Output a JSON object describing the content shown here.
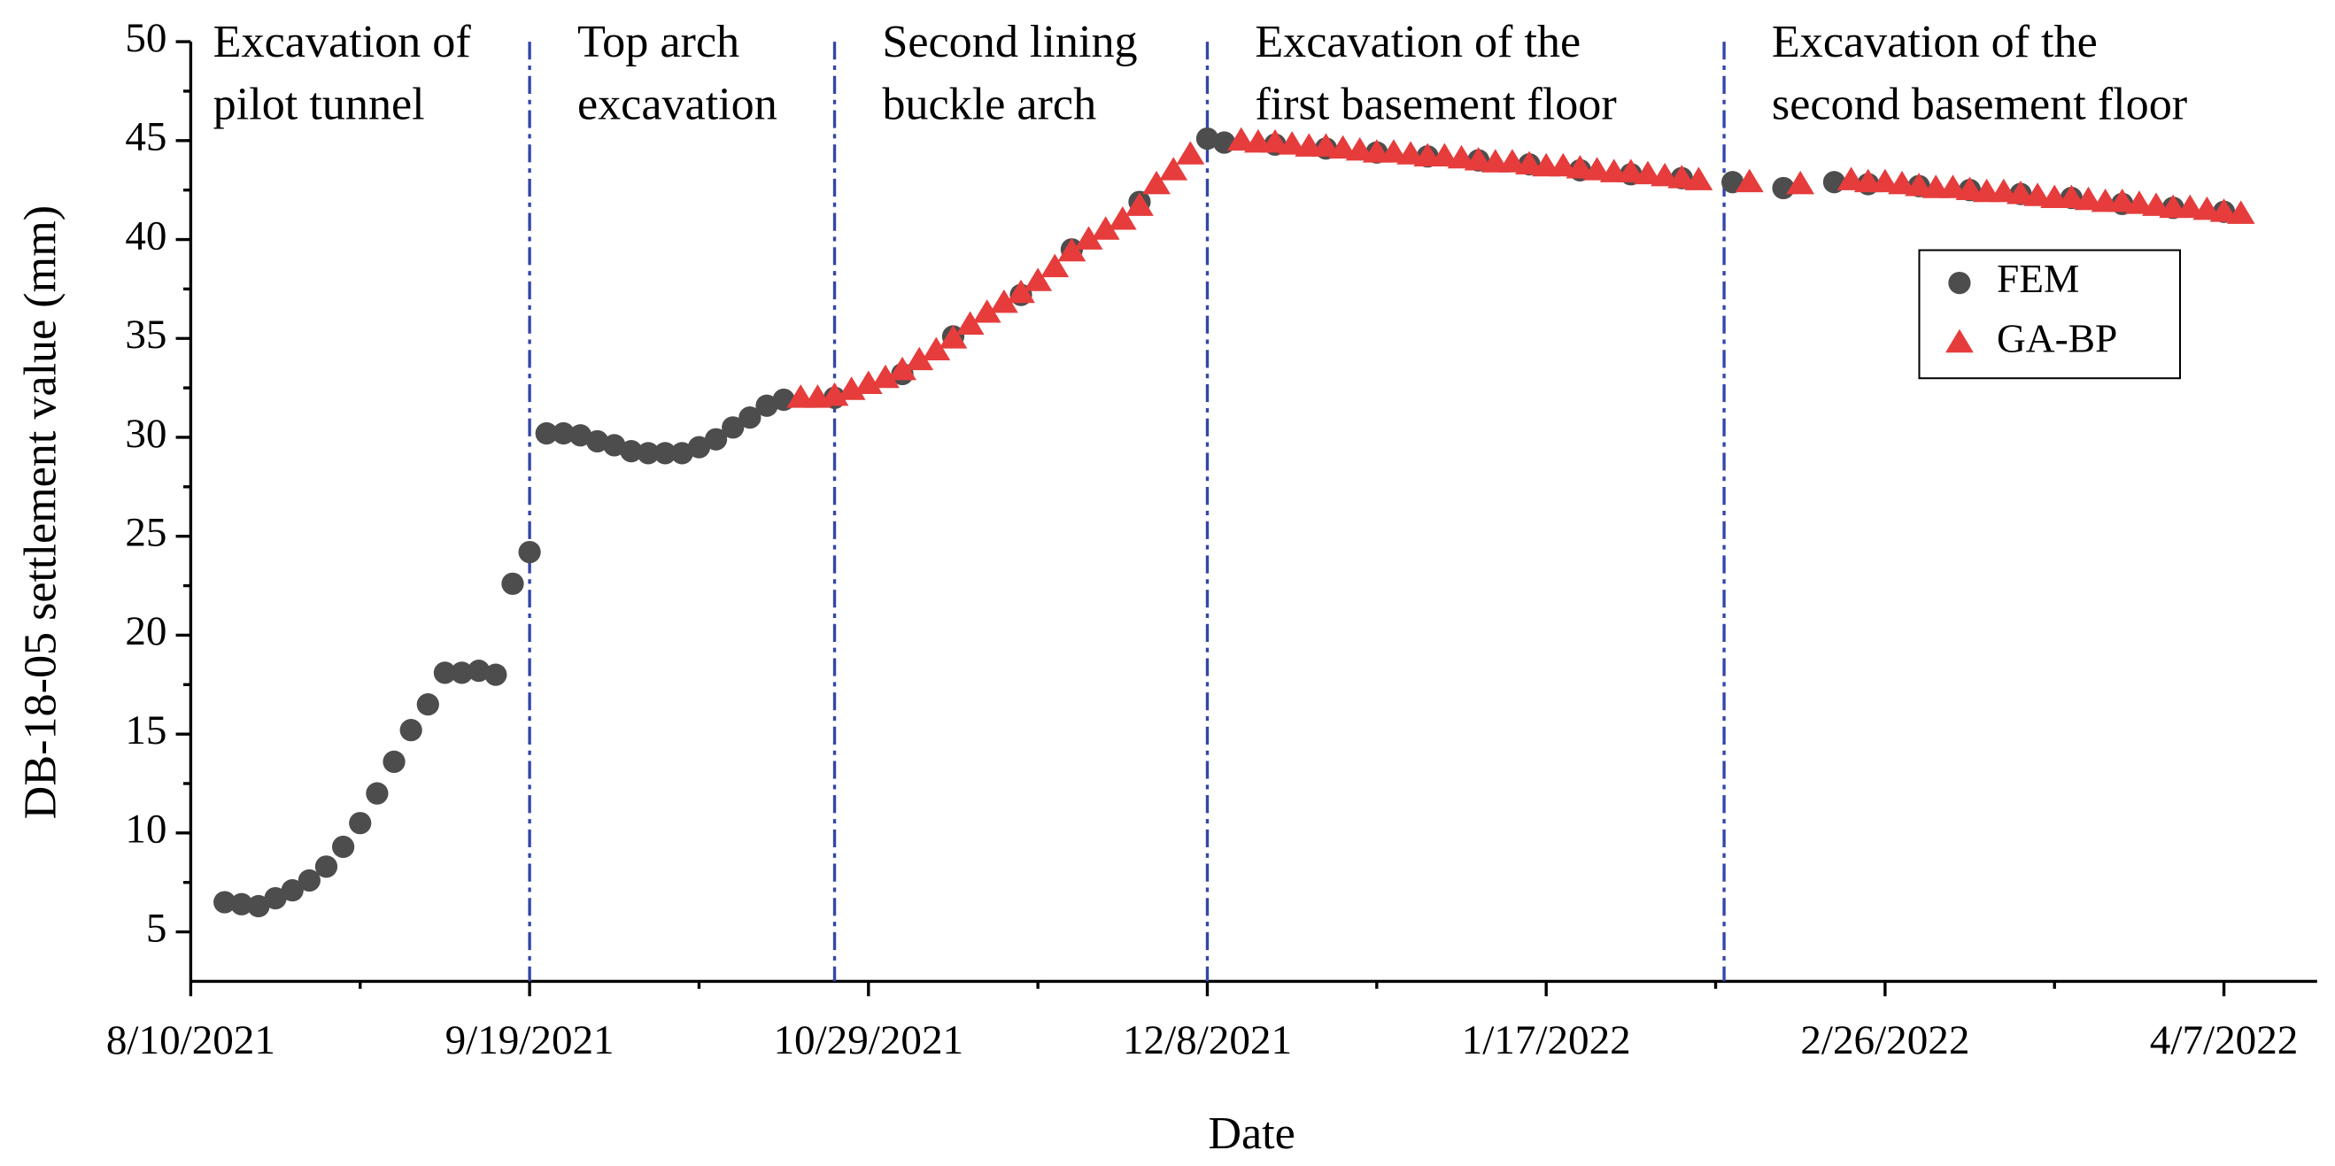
{
  "chart_data": {
    "type": "scatter",
    "x_label": "Date",
    "y_label": "DB-18-05 settlement value (mm)",
    "xlim": [
      "2021-08-10",
      "2022-04-18"
    ],
    "xticks": [
      {
        "value": "2021-08-10",
        "label": "8/10/2021"
      },
      {
        "value": "2021-09-19",
        "label": "9/19/2021"
      },
      {
        "value": "2021-10-29",
        "label": "10/29/2021"
      },
      {
        "value": "2021-12-08",
        "label": "12/8/2021"
      },
      {
        "value": "2022-01-17",
        "label": "1/17/2022"
      },
      {
        "value": "2022-02-26",
        "label": "2/26/2022"
      },
      {
        "value": "2022-04-07",
        "label": "4/7/2022"
      }
    ],
    "ylim": [
      2.5,
      50
    ],
    "yticks": [
      5,
      10,
      15,
      20,
      25,
      30,
      35,
      40,
      45,
      50
    ],
    "legend": "upper right",
    "phase_boundaries": [
      "2021-09-19",
      "2021-10-25",
      "2021-12-08",
      "2022-02-07"
    ],
    "phases": [
      {
        "lines": [
          "Excavation of",
          "pilot tunnel"
        ]
      },
      {
        "lines": [
          "Top arch",
          "excavation"
        ]
      },
      {
        "lines": [
          "Second lining",
          "buckle arch"
        ]
      },
      {
        "lines": [
          "Excavation of the",
          "first basement floor"
        ]
      },
      {
        "lines": [
          "Excavation of the",
          "second basement floor"
        ]
      }
    ],
    "series": [
      {
        "name": "FEM",
        "color": "#4d4d4d",
        "marker": "circle",
        "x": [
          "2021-08-14",
          "2021-08-16",
          "2021-08-18",
          "2021-08-20",
          "2021-08-22",
          "2021-08-24",
          "2021-08-26",
          "2021-08-28",
          "2021-08-30",
          "2021-09-01",
          "2021-09-03",
          "2021-09-05",
          "2021-09-07",
          "2021-09-09",
          "2021-09-11",
          "2021-09-13",
          "2021-09-15",
          "2021-09-17",
          "2021-09-19",
          "2021-09-21",
          "2021-09-23",
          "2021-09-25",
          "2021-09-27",
          "2021-09-29",
          "2021-10-01",
          "2021-10-03",
          "2021-10-05",
          "2021-10-07",
          "2021-10-09",
          "2021-10-11",
          "2021-10-13",
          "2021-10-15",
          "2021-10-17",
          "2021-10-19",
          "2021-10-25",
          "2021-11-02",
          "2021-11-08",
          "2021-11-16",
          "2021-11-22",
          "2021-11-30",
          "2021-12-08",
          "2021-12-10",
          "2021-12-16",
          "2021-12-22",
          "2021-12-28",
          "2022-01-03",
          "2022-01-09",
          "2022-01-15",
          "2022-01-21",
          "2022-01-27",
          "2022-02-02",
          "2022-02-08",
          "2022-02-14",
          "2022-02-20",
          "2022-02-24",
          "2022-03-02",
          "2022-03-08",
          "2022-03-14",
          "2022-03-20",
          "2022-03-26",
          "2022-04-01",
          "2022-04-07"
        ],
        "values": [
          6.5,
          6.4,
          6.3,
          6.7,
          7.1,
          7.6,
          8.3,
          9.3,
          10.5,
          12.0,
          13.6,
          15.2,
          16.5,
          18.1,
          18.1,
          18.2,
          18.0,
          22.6,
          24.2,
          30.2,
          30.2,
          30.1,
          29.8,
          29.6,
          29.3,
          29.2,
          29.2,
          29.2,
          29.5,
          29.9,
          30.5,
          31.0,
          31.6,
          31.9,
          32.0,
          33.2,
          35.1,
          37.2,
          39.5,
          41.9,
          45.1,
          44.9,
          44.8,
          44.6,
          44.4,
          44.2,
          44.0,
          43.8,
          43.5,
          43.3,
          43.1,
          42.9,
          42.6,
          42.9,
          42.8,
          42.7,
          42.5,
          42.3,
          42.1,
          41.8,
          41.6,
          41.4
        ]
      },
      {
        "name": "GA-BP",
        "color": "#e63c3c",
        "marker": "triangle",
        "x": [
          "2021-10-21",
          "2021-10-23",
          "2021-10-25",
          "2021-10-27",
          "2021-10-29",
          "2021-10-31",
          "2021-11-02",
          "2021-11-04",
          "2021-11-06",
          "2021-11-08",
          "2021-11-10",
          "2021-11-12",
          "2021-11-14",
          "2021-11-16",
          "2021-11-18",
          "2021-11-20",
          "2021-11-22",
          "2021-11-24",
          "2021-11-26",
          "2021-11-28",
          "2021-11-30",
          "2021-12-02",
          "2021-12-04",
          "2021-12-06",
          "2021-12-12",
          "2021-12-14",
          "2021-12-16",
          "2021-12-18",
          "2021-12-20",
          "2021-12-22",
          "2021-12-24",
          "2021-12-26",
          "2021-12-28",
          "2021-12-30",
          "2022-01-01",
          "2022-01-03",
          "2022-01-05",
          "2022-01-07",
          "2022-01-09",
          "2022-01-11",
          "2022-01-13",
          "2022-01-15",
          "2022-01-17",
          "2022-01-19",
          "2022-01-21",
          "2022-01-23",
          "2022-01-25",
          "2022-01-27",
          "2022-01-29",
          "2022-01-31",
          "2022-02-02",
          "2022-02-04",
          "2022-02-10",
          "2022-02-16",
          "2022-02-22",
          "2022-02-24",
          "2022-02-26",
          "2022-02-28",
          "2022-03-02",
          "2022-03-04",
          "2022-03-06",
          "2022-03-08",
          "2022-03-10",
          "2022-03-12",
          "2022-03-14",
          "2022-03-16",
          "2022-03-18",
          "2022-03-20",
          "2022-03-22",
          "2022-03-24",
          "2022-03-26",
          "2022-03-28",
          "2022-03-30",
          "2022-04-01",
          "2022-04-03",
          "2022-04-05",
          "2022-04-07",
          "2022-04-09"
        ],
        "values": [
          32.0,
          32.0,
          32.1,
          32.4,
          32.7,
          33.0,
          33.4,
          33.9,
          34.4,
          35.0,
          35.7,
          36.3,
          36.8,
          37.3,
          37.9,
          38.6,
          39.4,
          40.0,
          40.5,
          41.0,
          41.7,
          42.8,
          43.5,
          44.3,
          45.0,
          44.9,
          44.9,
          44.8,
          44.7,
          44.7,
          44.6,
          44.5,
          44.4,
          44.4,
          44.3,
          44.2,
          44.2,
          44.1,
          44.0,
          43.9,
          43.9,
          43.8,
          43.7,
          43.7,
          43.6,
          43.5,
          43.4,
          43.4,
          43.3,
          43.2,
          43.1,
          43.0,
          42.9,
          42.8,
          43.0,
          42.9,
          42.9,
          42.8,
          42.7,
          42.6,
          42.6,
          42.5,
          42.4,
          42.4,
          42.3,
          42.2,
          42.1,
          42.1,
          42.0,
          41.9,
          41.9,
          41.8,
          41.7,
          41.6,
          41.6,
          41.5,
          41.4,
          41.3
        ]
      }
    ]
  }
}
